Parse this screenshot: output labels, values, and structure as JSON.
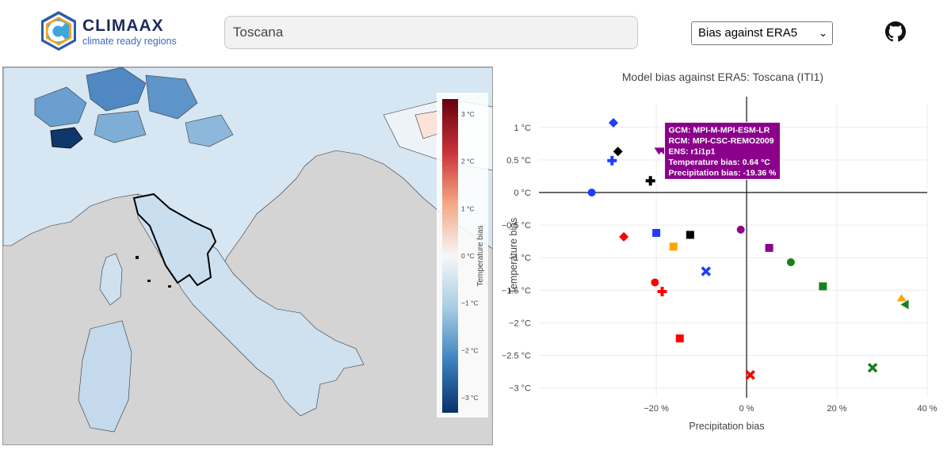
{
  "header": {
    "logo_title": "CLIMAAX",
    "logo_subtitle": "climate ready regions",
    "search_value": "Toscana",
    "select_value": "Bias against ERA5",
    "github_icon": "github-icon"
  },
  "map": {
    "colorbar_title": "Temperature bias",
    "colorbar_ticks": [
      "3 °C",
      "2 °C",
      "1 °C",
      "0 °C",
      "−1 °C",
      "−2 °C",
      "−3 °C"
    ],
    "colorbar_low": "#08306b",
    "colorbar_high": "#67000d",
    "highlight_region": "Toscana"
  },
  "chart_data": {
    "type": "scatter",
    "title": "Model bias against ERA5: Toscana (ITI1)",
    "xlabel": "Precipitation bias",
    "ylabel": "Temperature bias",
    "xlim": [
      -46,
      40
    ],
    "ylim": [
      -3.15,
      1.35
    ],
    "x_ticks": [
      {
        "v": -20,
        "label": "−20 %"
      },
      {
        "v": 0,
        "label": "0 %"
      },
      {
        "v": 20,
        "label": "20 %"
      },
      {
        "v": 40,
        "label": "40 %"
      }
    ],
    "y_ticks": [
      {
        "v": 1,
        "label": "1 °C"
      },
      {
        "v": 0.5,
        "label": "0.5 °C"
      },
      {
        "v": 0,
        "label": "0 °C"
      },
      {
        "v": -0.5,
        "label": "−0.5 °C"
      },
      {
        "v": -1,
        "label": "−1 °C"
      },
      {
        "v": -1.5,
        "label": "−1.5 °C"
      },
      {
        "v": -2,
        "label": "−2 °C"
      },
      {
        "v": -2.5,
        "label": "−2.5 °C"
      },
      {
        "v": -3,
        "label": "−3 °C"
      }
    ],
    "grid": true,
    "points": [
      {
        "x": -29.5,
        "y": 1.07,
        "color": "#1f3cff",
        "symbol": "diamond"
      },
      {
        "x": -28.5,
        "y": 0.63,
        "color": "#000000",
        "symbol": "diamond"
      },
      {
        "x": -29.8,
        "y": 0.49,
        "color": "#1f3cff",
        "symbol": "cross"
      },
      {
        "x": -19.4,
        "y": 0.64,
        "color": "#8b008b",
        "symbol": "triangle-down"
      },
      {
        "x": -21.3,
        "y": 0.18,
        "color": "#000000",
        "symbol": "cross"
      },
      {
        "x": -34.3,
        "y": 0.0,
        "color": "#1f3cff",
        "symbol": "circle"
      },
      {
        "x": -27.2,
        "y": -0.68,
        "color": "#ff0000",
        "symbol": "diamond"
      },
      {
        "x": -20.0,
        "y": -0.62,
        "color": "#1f3cff",
        "symbol": "square"
      },
      {
        "x": -12.5,
        "y": -0.65,
        "color": "#000000",
        "symbol": "square"
      },
      {
        "x": -16.2,
        "y": -0.83,
        "color": "#ffa500",
        "symbol": "square"
      },
      {
        "x": -1.3,
        "y": -0.57,
        "color": "#8b008b",
        "symbol": "circle"
      },
      {
        "x": 5.0,
        "y": -0.85,
        "color": "#8b008b",
        "symbol": "square"
      },
      {
        "x": 9.8,
        "y": -1.07,
        "color": "#1b7f1b",
        "symbol": "circle"
      },
      {
        "x": -9.0,
        "y": -1.21,
        "color": "#1f3cff",
        "symbol": "x"
      },
      {
        "x": -20.3,
        "y": -1.38,
        "color": "#ff0000",
        "symbol": "circle"
      },
      {
        "x": -18.7,
        "y": -1.52,
        "color": "#ff0000",
        "symbol": "cross"
      },
      {
        "x": 16.9,
        "y": -1.44,
        "color": "#1b7f1b",
        "symbol": "square"
      },
      {
        "x": 34.3,
        "y": -1.62,
        "color": "#ffa500",
        "symbol": "triangle-up"
      },
      {
        "x": 35.0,
        "y": -1.72,
        "color": "#1b7f1b",
        "symbol": "triangle-left"
      },
      {
        "x": -14.8,
        "y": -2.24,
        "color": "#ff0000",
        "symbol": "square"
      },
      {
        "x": 0.8,
        "y": -2.8,
        "color": "#ff0000",
        "symbol": "x"
      },
      {
        "x": 27.9,
        "y": -2.69,
        "color": "#1b7f1b",
        "symbol": "x"
      }
    ],
    "tooltip": {
      "point_index": 3,
      "lines": [
        "GCM: MPI-M-MPI-ESM-LR",
        "RCM: MPI-CSC-REMO2009",
        "ENS: r1i1p1",
        "Temperature bias: 0.64 °C",
        "Precipitation bias: -19.36 %"
      ],
      "color": "#8b008b"
    }
  }
}
